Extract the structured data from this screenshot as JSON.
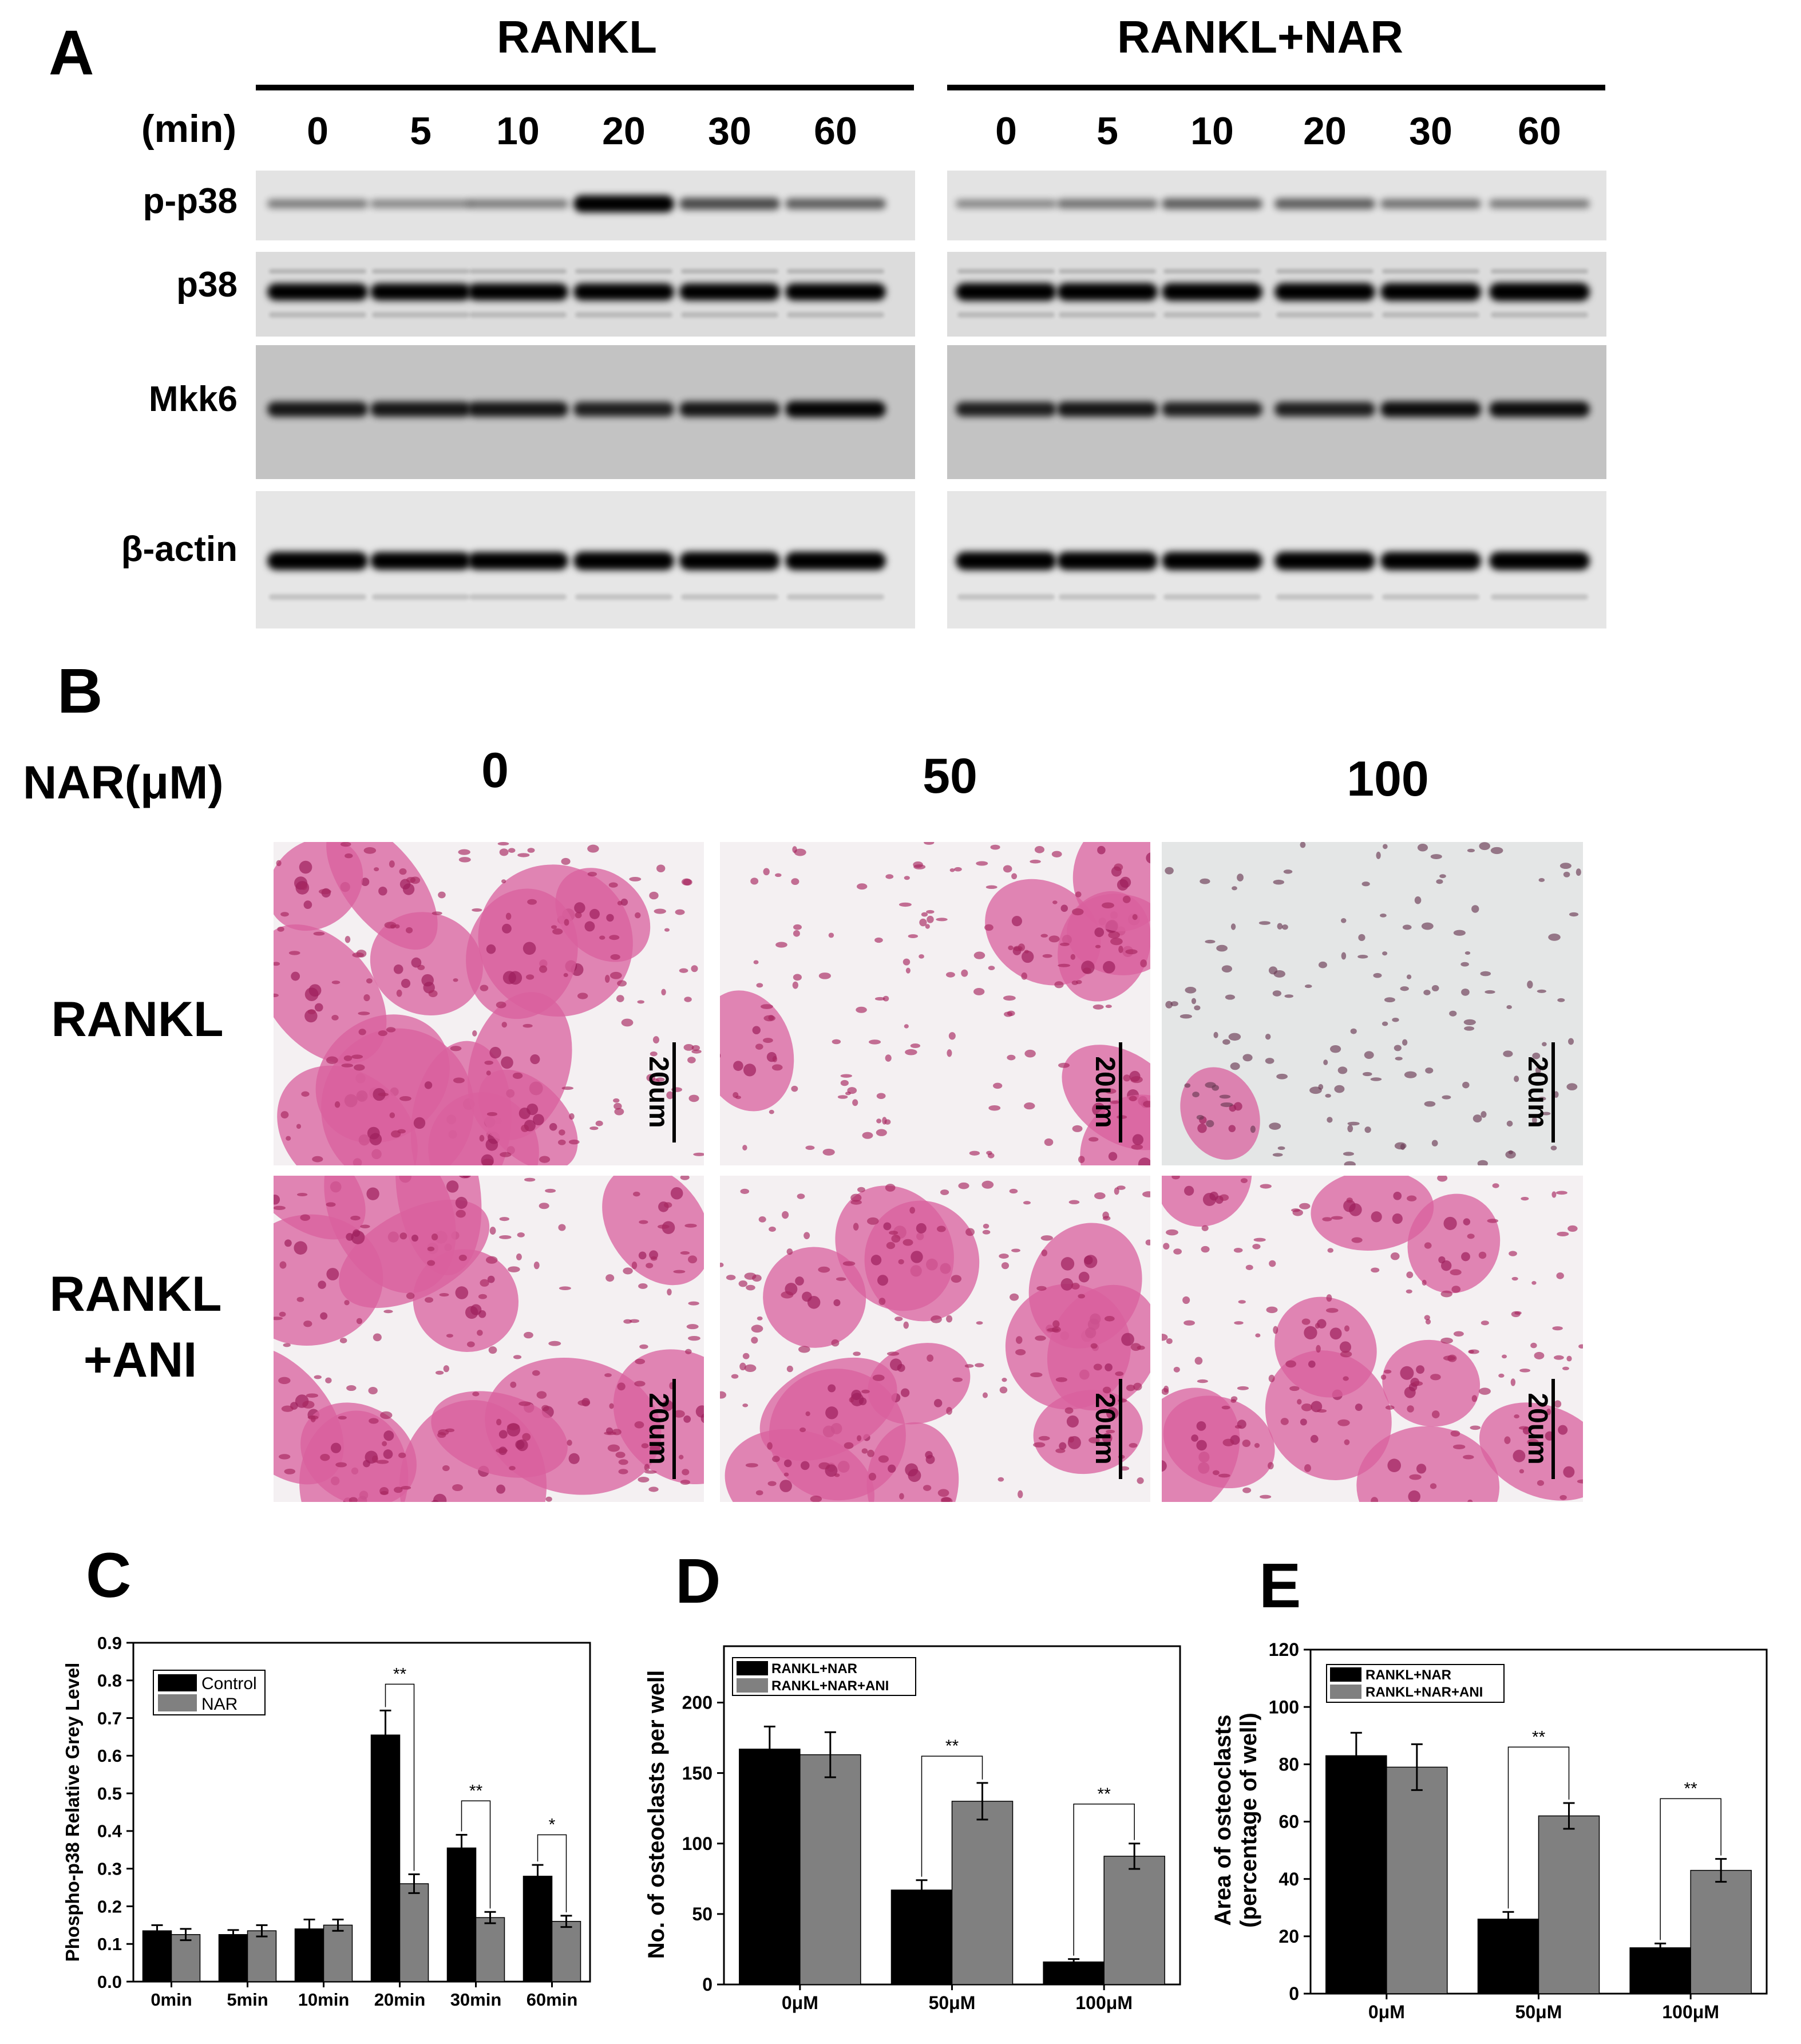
{
  "panels": {
    "A": {
      "letter": "A",
      "groups": [
        "RANKL",
        "RANKL+NAR"
      ],
      "time_label": "(min)",
      "times": [
        "0",
        "5",
        "10",
        "20",
        "30",
        "60"
      ],
      "rows": [
        "p-p38",
        "p38",
        "Mkk6",
        "β-actin"
      ],
      "band_intensity": {
        "p-p38": {
          "RANKL": [
            0.25,
            0.2,
            0.25,
            0.9,
            0.5,
            0.4
          ],
          "RANKL+NAR": [
            0.2,
            0.3,
            0.4,
            0.4,
            0.3,
            0.25
          ]
        },
        "p38": {
          "RANKL": [
            0.9,
            0.9,
            0.9,
            0.9,
            0.9,
            0.9
          ],
          "RANKL+NAR": [
            0.95,
            0.95,
            0.95,
            0.95,
            0.95,
            1.0
          ]
        },
        "Mkk6": {
          "RANKL": [
            0.75,
            0.75,
            0.75,
            0.7,
            0.75,
            0.85
          ],
          "RANKL+NAR": [
            0.7,
            0.75,
            0.7,
            0.7,
            0.8,
            0.8
          ]
        },
        "β-actin": {
          "RANKL": [
            1.0,
            0.95,
            0.95,
            1.0,
            1.0,
            1.0
          ],
          "RANKL+NAR": [
            1.0,
            1.0,
            1.0,
            1.0,
            1.0,
            1.0
          ]
        }
      }
    },
    "B": {
      "letter": "B",
      "dose_label": "NAR(μM)",
      "doses": [
        "0",
        "50",
        "100"
      ],
      "row_labels": [
        [
          "RANKL"
        ],
        [
          "RANKL",
          "+ANI"
        ]
      ],
      "scale_bar": "20um",
      "trap_density": [
        [
          0.9,
          0.45,
          0.05
        ],
        [
          0.85,
          0.75,
          0.6
        ]
      ]
    },
    "C": {
      "letter": "C",
      "ylabel": "Phospho-p38 Relative Grey Level",
      "categories": [
        "0min",
        "5min",
        "10min",
        "20min",
        "30min",
        "60min"
      ],
      "yticks": [
        "0.0",
        "0.1",
        "0.2",
        "0.3",
        "0.4",
        "0.5",
        "0.6",
        "0.7",
        "0.8",
        "0.9"
      ],
      "ylim": [
        0,
        0.9
      ],
      "series": [
        {
          "name": "Control",
          "color": "#000000",
          "values": [
            0.135,
            0.125,
            0.14,
            0.655,
            0.355,
            0.28
          ],
          "errors": [
            0.015,
            0.012,
            0.025,
            0.065,
            0.035,
            0.03
          ]
        },
        {
          "name": "NAR",
          "color": "#808080",
          "values": [
            0.125,
            0.135,
            0.15,
            0.26,
            0.17,
            0.16
          ],
          "errors": [
            0.015,
            0.015,
            0.015,
            0.025,
            0.015,
            0.015
          ]
        }
      ],
      "significance": [
        {
          "index": 3,
          "label": "**",
          "level": 0.79
        },
        {
          "index": 4,
          "label": "**",
          "level": 0.48
        },
        {
          "index": 5,
          "label": "*",
          "level": 0.39
        }
      ]
    },
    "D": {
      "letter": "D",
      "ylabel": "No. of osteoclasts per well",
      "categories": [
        "0μM",
        "50μM",
        "100μM"
      ],
      "yticks": [
        "0",
        "50",
        "100",
        "150",
        "200"
      ],
      "ylim": [
        0,
        240
      ],
      "series": [
        {
          "name": "RANKL+NAR",
          "color": "#000000",
          "values": [
            167,
            67,
            16
          ],
          "errors": [
            16,
            7,
            2
          ]
        },
        {
          "name": "RANKL+NAR+ANI",
          "color": "#808080",
          "values": [
            163,
            130,
            91
          ],
          "errors": [
            16,
            13,
            9
          ]
        }
      ],
      "significance": [
        {
          "index": 1,
          "label": "**",
          "level": 162
        },
        {
          "index": 2,
          "label": "**",
          "level": 128
        }
      ]
    },
    "E": {
      "letter": "E",
      "ylabel": "Area of osteoclasts",
      "ylabel2": "(percentage of well)",
      "categories": [
        "0μM",
        "50μM",
        "100μM"
      ],
      "yticks": [
        "0",
        "20",
        "40",
        "60",
        "80",
        "100",
        "120"
      ],
      "ylim": [
        0,
        120
      ],
      "series": [
        {
          "name": "RANKL+NAR",
          "color": "#000000",
          "values": [
            83,
            26,
            16
          ],
          "errors": [
            8,
            2.5,
            1.5
          ]
        },
        {
          "name": "RANKL+NAR+ANI",
          "color": "#808080",
          "values": [
            79,
            62,
            43
          ],
          "errors": [
            8,
            4.5,
            4
          ]
        }
      ],
      "significance": [
        {
          "index": 1,
          "label": "**",
          "level": 86
        },
        {
          "index": 2,
          "label": "**",
          "level": 68
        }
      ]
    }
  }
}
